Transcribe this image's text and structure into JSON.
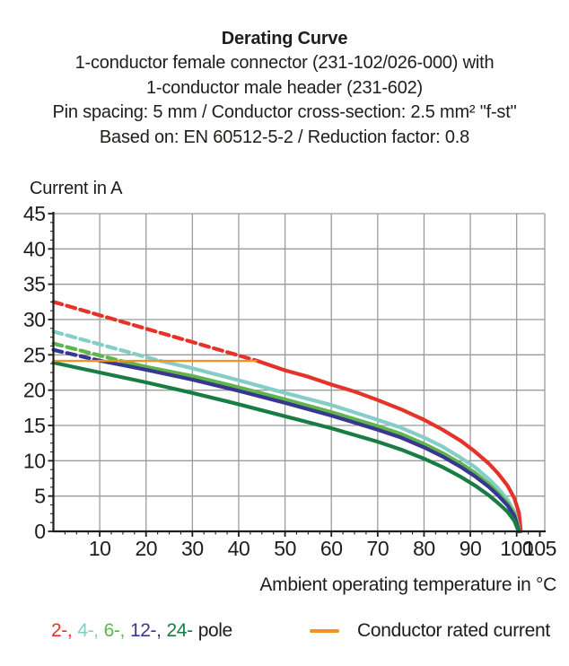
{
  "header": {
    "title": "Derating Curve",
    "subtitle_lines": [
      "1-conductor female connector (231-102/026-000) with",
      "1-conductor male header (231-602)",
      "Pin spacing: 5 mm / Conductor cross-section: 2.5 mm² \"f-st\"",
      "Based on: EN 60512-5-2 / Reduction factor: 0.8"
    ]
  },
  "chart_data": {
    "type": "line",
    "title": "Derating Curve",
    "xlabel": "Ambient operating temperature in °C",
    "ylabel": "Current in A",
    "xlim": [
      0,
      106.2
    ],
    "ylim": [
      0,
      45
    ],
    "x_ticks": [
      10,
      20,
      30,
      40,
      50,
      60,
      70,
      80,
      90,
      100,
      105
    ],
    "y_ticks": [
      0,
      5,
      10,
      15,
      20,
      25,
      30,
      35,
      40,
      45
    ],
    "x_minor_step": 2.5,
    "y_minor_step": 1.25,
    "grid": true,
    "grid_color": "#9b9b9b",
    "axis_color": "#1d1d1b",
    "rated_current": {
      "label": "Conductor rated current",
      "color": "#f0941f",
      "value": 24.15,
      "x_start": 0,
      "x_end": 44
    },
    "series": [
      {
        "name": "2-pole",
        "color": "#e4332a",
        "dashed": [
          [
            0,
            32.5
          ],
          [
            44,
            24.15
          ]
        ],
        "solid": [
          [
            44,
            24.15
          ],
          [
            50,
            22.8
          ],
          [
            55,
            21.9
          ],
          [
            60,
            20.8
          ],
          [
            65,
            19.8
          ],
          [
            70,
            18.6
          ],
          [
            75,
            17.3
          ],
          [
            80,
            15.8
          ],
          [
            84,
            14.4
          ],
          [
            88,
            12.8
          ],
          [
            91,
            11.3
          ],
          [
            94,
            9.6
          ],
          [
            96,
            8.2
          ],
          [
            98,
            6.5
          ],
          [
            99.5,
            4.7
          ],
          [
            100.5,
            2.6
          ],
          [
            100.9,
            0
          ]
        ]
      },
      {
        "name": "4-pole",
        "color": "#85cec8",
        "dashed": [
          [
            0,
            28.3
          ],
          [
            23,
            24.15
          ]
        ],
        "solid": [
          [
            23,
            24.15
          ],
          [
            30,
            23.1
          ],
          [
            40,
            21.4
          ],
          [
            50,
            19.6
          ],
          [
            60,
            17.9
          ],
          [
            70,
            15.8
          ],
          [
            75,
            14.7
          ],
          [
            80,
            13.3
          ],
          [
            84,
            12.0
          ],
          [
            88,
            10.4
          ],
          [
            91,
            9.1
          ],
          [
            94,
            7.4
          ],
          [
            96,
            6.1
          ],
          [
            98,
            4.5
          ],
          [
            99.5,
            2.8
          ],
          [
            100.6,
            0
          ]
        ]
      },
      {
        "name": "6-pole",
        "color": "#5fb54d",
        "dashed": [
          [
            0,
            26.6
          ],
          [
            14.5,
            24.15
          ]
        ],
        "solid": [
          [
            14.5,
            24.15
          ],
          [
            20,
            23.3
          ],
          [
            30,
            22.0
          ],
          [
            40,
            20.4
          ],
          [
            50,
            18.7
          ],
          [
            60,
            16.9
          ],
          [
            70,
            14.9
          ],
          [
            75,
            13.8
          ],
          [
            80,
            12.4
          ],
          [
            84,
            11.1
          ],
          [
            88,
            9.6
          ],
          [
            91,
            8.3
          ],
          [
            94,
            6.7
          ],
          [
            96,
            5.4
          ],
          [
            98,
            4.0
          ],
          [
            99.5,
            2.4
          ],
          [
            100.5,
            0
          ]
        ]
      },
      {
        "name": "12-pole",
        "color": "#37378f",
        "dashed": [
          [
            0,
            25.7
          ],
          [
            10.2,
            24.15
          ]
        ],
        "solid": [
          [
            10.2,
            24.15
          ],
          [
            20,
            22.9
          ],
          [
            30,
            21.5
          ],
          [
            40,
            19.9
          ],
          [
            50,
            18.2
          ],
          [
            60,
            16.4
          ],
          [
            70,
            14.4
          ],
          [
            75,
            13.3
          ],
          [
            80,
            11.9
          ],
          [
            84,
            10.6
          ],
          [
            88,
            9.1
          ],
          [
            91,
            7.8
          ],
          [
            94,
            6.3
          ],
          [
            96,
            5.1
          ],
          [
            98,
            3.7
          ],
          [
            99.5,
            2.2
          ],
          [
            100.5,
            0
          ]
        ]
      },
      {
        "name": "24-pole",
        "color": "#187c44",
        "dashed": null,
        "solid": [
          [
            0,
            23.9
          ],
          [
            10,
            22.5
          ],
          [
            20,
            21.1
          ],
          [
            30,
            19.6
          ],
          [
            40,
            18.0
          ],
          [
            50,
            16.3
          ],
          [
            60,
            14.6
          ],
          [
            70,
            12.7
          ],
          [
            75,
            11.6
          ],
          [
            80,
            10.3
          ],
          [
            84,
            9.1
          ],
          [
            88,
            7.7
          ],
          [
            91,
            6.5
          ],
          [
            94,
            5.1
          ],
          [
            96,
            4.0
          ],
          [
            98,
            2.8
          ],
          [
            99.5,
            1.5
          ],
          [
            100.4,
            0
          ]
        ]
      }
    ]
  },
  "legend": {
    "pole_items": [
      {
        "label": "2-,",
        "color": "#e4332a"
      },
      {
        "label": "4-,",
        "color": "#85cec8"
      },
      {
        "label": "6-,",
        "color": "#5fb54d"
      },
      {
        "label": "12-,",
        "color": "#37378f"
      },
      {
        "label": "24-",
        "color": "#187c44"
      }
    ],
    "pole_suffix": "pole",
    "rated_label": "Conductor rated current"
  }
}
